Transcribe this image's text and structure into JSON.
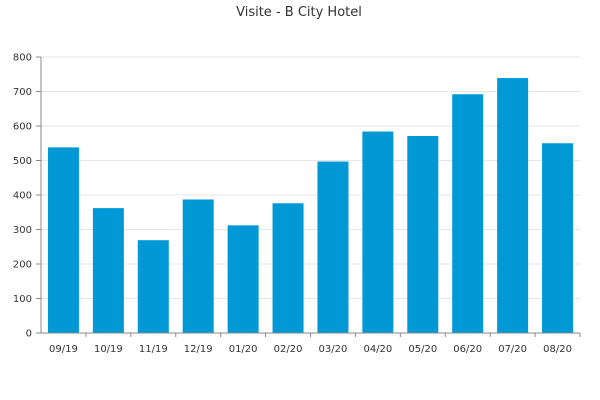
{
  "chart_data": {
    "type": "bar",
    "title": "Visite - B City Hotel",
    "categories": [
      "09/19",
      "10/19",
      "11/19",
      "12/19",
      "01/20",
      "02/20",
      "03/20",
      "04/20",
      "05/20",
      "06/20",
      "07/20",
      "08/20"
    ],
    "values": [
      538,
      362,
      269,
      387,
      312,
      376,
      497,
      584,
      571,
      692,
      739,
      550
    ],
    "ylim": [
      0,
      800
    ],
    "yticks": [
      0,
      100,
      200,
      300,
      400,
      500,
      600,
      700,
      800
    ],
    "grid": true,
    "bar_color": "#0099d6"
  }
}
